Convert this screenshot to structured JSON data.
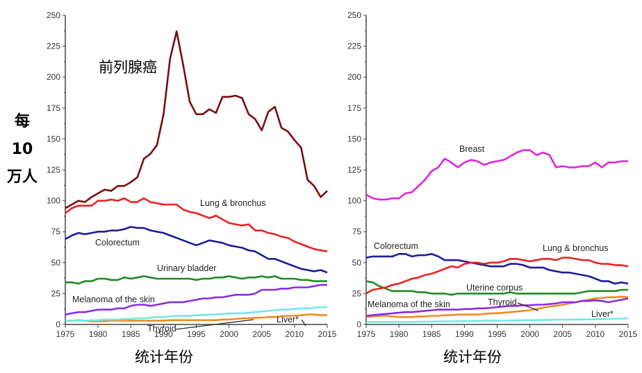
{
  "y_axis_label": [
    "每",
    "10",
    "万人"
  ],
  "chart_data": [
    {
      "type": "line",
      "panel": "left",
      "title": "",
      "annotation": "前列腺癌",
      "xlabel": "统计年份",
      "ylabel": "每10万人",
      "xlim": [
        1975,
        2015
      ],
      "ylim": [
        0,
        250
      ],
      "xticks": [
        1975,
        1980,
        1985,
        1990,
        1995,
        2000,
        2005,
        2010,
        2015
      ],
      "yticks": [
        0,
        25,
        50,
        75,
        100,
        125,
        150,
        175,
        200,
        225,
        250
      ],
      "x_start": 1975,
      "series": [
        {
          "name": "前列腺癌",
          "label": "",
          "color": "#7a0c0c",
          "values": [
            94,
            97,
            100,
            99,
            103,
            106,
            109,
            108,
            112,
            112,
            115,
            119,
            134,
            138,
            145,
            170,
            215,
            237,
            210,
            180,
            170,
            170,
            174,
            171,
            184,
            184,
            185,
            183,
            170,
            166,
            157,
            172,
            176,
            159,
            156,
            149,
            143,
            117,
            112,
            103,
            108
          ]
        },
        {
          "name": "Lung & bronchus",
          "label": "Lung & bronchus",
          "color": "#e82222",
          "values": [
            90,
            94,
            96,
            96,
            96,
            100,
            100,
            101,
            100,
            102,
            99,
            99,
            102,
            99,
            98,
            97,
            97,
            97,
            93,
            91,
            90,
            88,
            86,
            88,
            85,
            82,
            81,
            80,
            81,
            76,
            76,
            74,
            73,
            71,
            70,
            67,
            65,
            63,
            61,
            60,
            59
          ]
        },
        {
          "name": "Colorectum",
          "label": "Colorectum",
          "color": "#1c1c96",
          "values": [
            69,
            72,
            74,
            73,
            74,
            75,
            75,
            76,
            76,
            77,
            79,
            78,
            78,
            76,
            75,
            74,
            72,
            70,
            68,
            66,
            64,
            66,
            68,
            67,
            66,
            64,
            63,
            62,
            60,
            59,
            56,
            53,
            53,
            51,
            49,
            47,
            45,
            44,
            43,
            44,
            42
          ]
        },
        {
          "name": "Urinary bladder",
          "label": "Urinary bladder",
          "color": "#1f8a22",
          "values": [
            34,
            34,
            33,
            35,
            35,
            37,
            37,
            36,
            36,
            38,
            37,
            38,
            39,
            38,
            37,
            37,
            37,
            37,
            37,
            37,
            36,
            37,
            37,
            38,
            38,
            39,
            38,
            37,
            38,
            38,
            39,
            38,
            39,
            37,
            37,
            37,
            36,
            36,
            35,
            35,
            35
          ]
        },
        {
          "name": "Melanoma of the skin",
          "label": "Melanoma of the skin",
          "color": "#8b2be2",
          "values": [
            8,
            9,
            10,
            10,
            11,
            12,
            12,
            12,
            13,
            13,
            15,
            16,
            16,
            15,
            16,
            17,
            18,
            18,
            18,
            19,
            20,
            21,
            21,
            22,
            22,
            23,
            24,
            24,
            24,
            25,
            28,
            28,
            28,
            29,
            29,
            30,
            30,
            30,
            31,
            32,
            32
          ]
        },
        {
          "name": "Liver*",
          "label": "Liver*",
          "color": "#70e8e8",
          "values": [
            3,
            3,
            3,
            3,
            3.5,
            3.5,
            4,
            4,
            4,
            4.5,
            4.5,
            5,
            5,
            5.5,
            6,
            6,
            6.5,
            7,
            7,
            7,
            7.5,
            7.5,
            8,
            8,
            8.5,
            9,
            9,
            9,
            9.5,
            10,
            10.5,
            11,
            11.5,
            12,
            12,
            12.5,
            13,
            13,
            13.5,
            14,
            14
          ]
        },
        {
          "name": "Thyroid",
          "label": "Thyroid",
          "color": "#f08a22",
          "values": [
            3,
            3,
            3.5,
            3,
            2.5,
            2.5,
            2.5,
            3,
            3,
            3,
            3,
            3,
            3,
            3,
            3,
            3,
            3.5,
            3.5,
            3.5,
            3.5,
            3.5,
            3.5,
            3.5,
            3.5,
            4,
            4,
            4.5,
            5,
            5,
            5.5,
            5.5,
            6,
            6,
            6.5,
            7,
            7,
            7.5,
            8,
            8,
            7.5,
            7.5
          ]
        }
      ]
    },
    {
      "type": "line",
      "panel": "right",
      "title": "",
      "xlabel": "统计年份",
      "ylabel": "",
      "xlim": [
        1975,
        2015
      ],
      "ylim": [
        0,
        250
      ],
      "xticks": [
        1975,
        1980,
        1985,
        1990,
        1995,
        2000,
        2005,
        2010,
        2015
      ],
      "yticks": [
        0,
        25,
        50,
        75,
        100,
        125,
        150,
        175,
        200,
        225,
        250
      ],
      "x_start": 1975,
      "series": [
        {
          "name": "Breast",
          "label": "Breast",
          "color": "#e022e0",
          "values": [
            105,
            102,
            101,
            101,
            102,
            102,
            106,
            107,
            112,
            117,
            124,
            127,
            134,
            131,
            127,
            131,
            133,
            132,
            129,
            131,
            132,
            133,
            136,
            139,
            141,
            141,
            137,
            139,
            137,
            127,
            128,
            127,
            127,
            128,
            128,
            131,
            127,
            131,
            131,
            132,
            132
          ]
        },
        {
          "name": "Lung & bronchus",
          "label": "Lung & bronchus",
          "color": "#e82222",
          "values": [
            25,
            28,
            29,
            30,
            32,
            33,
            35,
            37,
            38,
            40,
            41,
            43,
            45,
            47,
            46,
            49,
            50,
            50,
            49,
            50,
            50,
            51,
            53,
            53,
            52,
            51,
            52,
            53,
            53,
            52,
            54,
            54,
            53,
            52,
            52,
            50,
            49,
            49,
            48,
            48,
            47
          ]
        },
        {
          "name": "Colorectum",
          "label": "Colorectum",
          "color": "#1c1c96",
          "values": [
            54,
            55,
            55,
            55,
            55,
            57,
            57,
            55,
            56,
            56,
            57,
            55,
            52,
            52,
            52,
            51,
            50,
            49,
            48,
            47,
            47,
            47,
            49,
            49,
            48,
            46,
            46,
            46,
            44,
            43,
            42,
            42,
            41,
            40,
            39,
            37,
            35,
            35,
            33,
            34,
            33
          ]
        },
        {
          "name": "Uterine corpus",
          "label": "Uterine corpus",
          "color": "#1f8a22",
          "values": [
            35,
            34,
            31,
            29,
            27,
            27,
            27,
            27,
            26,
            26,
            25,
            25,
            25,
            24,
            25,
            25,
            25,
            25,
            25,
            25,
            25,
            25,
            26,
            25,
            25,
            25,
            25,
            25,
            25,
            25,
            25,
            25,
            25,
            26,
            27,
            27,
            27,
            27,
            27,
            28,
            28
          ]
        },
        {
          "name": "Melanoma of the skin",
          "label": "Melanoma of the skin",
          "color": "#8b2be2",
          "values": [
            7,
            7.5,
            8,
            8.5,
            9,
            9.5,
            10,
            10,
            10.5,
            11,
            11.5,
            12,
            12,
            12,
            12,
            12.5,
            12.5,
            13,
            13,
            13.5,
            14,
            14.5,
            15,
            15,
            15.5,
            15.5,
            16,
            16,
            16.5,
            17,
            18,
            18,
            18,
            19,
            19,
            19.5,
            19,
            18,
            19,
            20,
            21
          ]
        },
        {
          "name": "Thyroid",
          "label": "Thyroid",
          "color": "#f08a22",
          "values": [
            6,
            6.5,
            7,
            7,
            6.5,
            6,
            6,
            6,
            6.5,
            6.5,
            7,
            7,
            7.5,
            7.5,
            8,
            8,
            8,
            8,
            8.5,
            9,
            9,
            9.5,
            10,
            10.5,
            11,
            11.5,
            12.5,
            13.5,
            14.5,
            15,
            16,
            17,
            18,
            19,
            20,
            21,
            21.5,
            22,
            22,
            22.5,
            22
          ]
        },
        {
          "name": "Liver*",
          "label": "Liver*",
          "color": "#70e8e8",
          "values": [
            2,
            2,
            2,
            2,
            2,
            2,
            2,
            2,
            2.2,
            2.2,
            2.3,
            2.4,
            2.5,
            2.5,
            2.6,
            2.7,
            2.8,
            2.9,
            3,
            3,
            3,
            3.1,
            3.2,
            3.3,
            3.4,
            3.5,
            3.5,
            3.6,
            3.7,
            3.8,
            3.9,
            4,
            4,
            4.1,
            4.2,
            4.3,
            4.4,
            4.5,
            4.6,
            4.7,
            5
          ]
        }
      ]
    }
  ]
}
